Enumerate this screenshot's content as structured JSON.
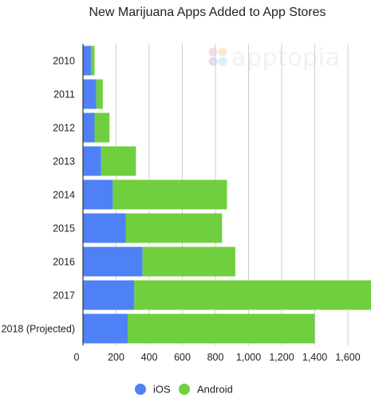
{
  "chart_data": {
    "type": "bar",
    "orientation": "horizontal",
    "stacked": true,
    "title": "New Marijuana Apps Added to App Stores",
    "categories": [
      "2010",
      "2011",
      "2012",
      "2013",
      "2014",
      "2015",
      "2016",
      "2017",
      "2018 (Projected)"
    ],
    "series": [
      {
        "name": "iOS",
        "color": "#4f81f6",
        "values": [
          50,
          80,
          70,
          110,
          180,
          260,
          360,
          310,
          270
        ]
      },
      {
        "name": "Android",
        "color": "#6fcf3f",
        "values": [
          20,
          40,
          90,
          210,
          690,
          580,
          560,
          1520,
          1130
        ]
      }
    ],
    "x_ticks": [
      "0",
      "200",
      "400",
      "600",
      "800",
      "1,000",
      "1,200",
      "1,400",
      "1,600"
    ],
    "xlim": [
      0,
      1800
    ],
    "grid": true,
    "legend_position": "bottom",
    "watermark": "apptopia"
  }
}
